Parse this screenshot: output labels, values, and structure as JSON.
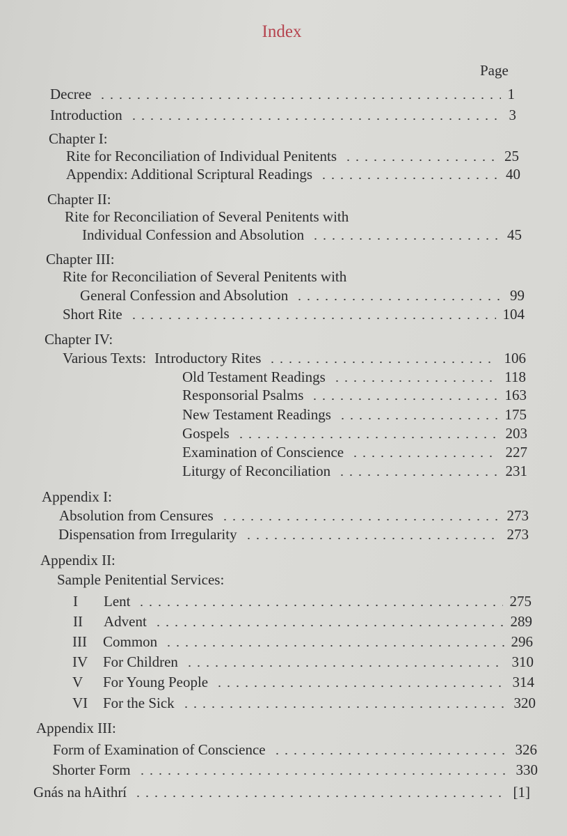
{
  "title": "Index",
  "page_heading": "Page",
  "entries": [
    {
      "text": "Decree",
      "page": "1"
    },
    {
      "text": "Introduction",
      "page": "3"
    },
    {
      "text": "Chapter I:"
    },
    {
      "text": "Rite for Reconciliation of Individual Penitents",
      "page": "25"
    },
    {
      "text": "Appendix: Additional Scriptural Readings",
      "page": "40"
    },
    {
      "text": "Chapter II:"
    },
    {
      "text": "Rite for Reconciliation of Several Penitents with"
    },
    {
      "text": "Individual Confession and Absolution",
      "page": "45"
    },
    {
      "text": "Chapter III:"
    },
    {
      "text": "Rite for Reconciliation of Several Penitents with"
    },
    {
      "text": "General Confession and Absolution",
      "page": "99"
    },
    {
      "text": "Short Rite",
      "page": "104"
    },
    {
      "text": "Chapter IV:"
    },
    {
      "text": "Various Texts:",
      "sub": "Introductory Rites",
      "page": "106"
    },
    {
      "sub": "Old Testament Readings",
      "page": "118"
    },
    {
      "sub": "Responsorial Psalms",
      "page": "163"
    },
    {
      "sub": "New Testament Readings",
      "page": "175"
    },
    {
      "sub": "Gospels",
      "page": "203"
    },
    {
      "sub": "Examination of Conscience",
      "page": "227"
    },
    {
      "sub": "Liturgy of Reconciliation",
      "page": "231"
    },
    {
      "text": "Appendix I:"
    },
    {
      "text": "Absolution from Censures",
      "page": "273"
    },
    {
      "text": "Dispensation from Irregularity",
      "page": "273"
    },
    {
      "text": "Appendix II:"
    },
    {
      "text": "Sample Penitential Services:"
    },
    {
      "roman": "I",
      "text": "Lent",
      "page": "275"
    },
    {
      "roman": "II",
      "text": "Advent",
      "page": "289"
    },
    {
      "roman": "III",
      "text": "Common",
      "page": "296"
    },
    {
      "roman": "IV",
      "text": "For Children",
      "page": "310"
    },
    {
      "roman": "V",
      "text": "For Young People",
      "page": "314"
    },
    {
      "roman": "VI",
      "text": "For the Sick",
      "page": "320"
    },
    {
      "text": "Appendix III:"
    },
    {
      "text": "Form of Examination of Conscience",
      "page": "326"
    },
    {
      "text": "Shorter Form",
      "page": "330"
    },
    {
      "text": "Gnás na hAithrí",
      "page": "[1]"
    }
  ]
}
